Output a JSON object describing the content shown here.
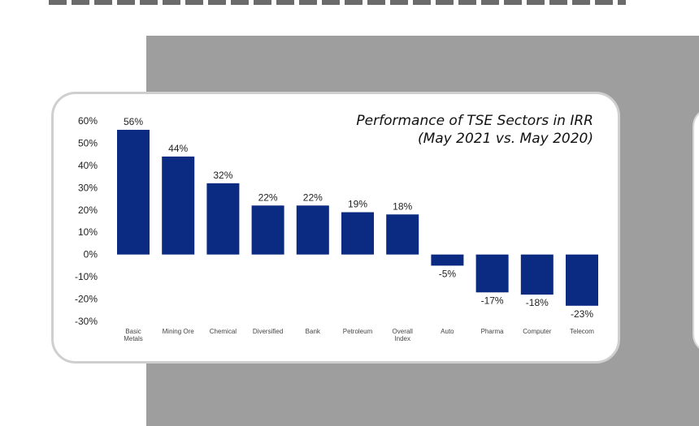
{
  "chart_data": {
    "type": "bar",
    "title": [
      "Performance of TSE Sectors in IRR",
      "(May 2021 vs. May 2020)"
    ],
    "categories": [
      [
        "Basic",
        "Metals"
      ],
      [
        "Mining Ore"
      ],
      [
        "Chemical"
      ],
      [
        "Diversified"
      ],
      [
        "Bank"
      ],
      [
        "Petroleum"
      ],
      [
        "Overall",
        "Index"
      ],
      [
        "Auto"
      ],
      [
        "Pharma"
      ],
      [
        "Computer"
      ],
      [
        "Telecom"
      ]
    ],
    "values": [
      56,
      44,
      32,
      22,
      22,
      19,
      18,
      -5,
      -17,
      -18,
      -23
    ],
    "value_labels": [
      "56%",
      "44%",
      "32%",
      "22%",
      "22%",
      "19%",
      "18%",
      "-5%",
      "-17%",
      "-18%",
      "-23%"
    ],
    "y_ticks": [
      60,
      50,
      40,
      30,
      20,
      10,
      0,
      -10,
      -20,
      -30
    ],
    "y_tick_labels": [
      "60%",
      "50%",
      "40%",
      "30%",
      "20%",
      "10%",
      "0%",
      "-10%",
      "-20%",
      "-30%"
    ],
    "ylim": [
      -30,
      60
    ],
    "grid": false,
    "legend": "none",
    "bar_color": "#0b2a82"
  }
}
